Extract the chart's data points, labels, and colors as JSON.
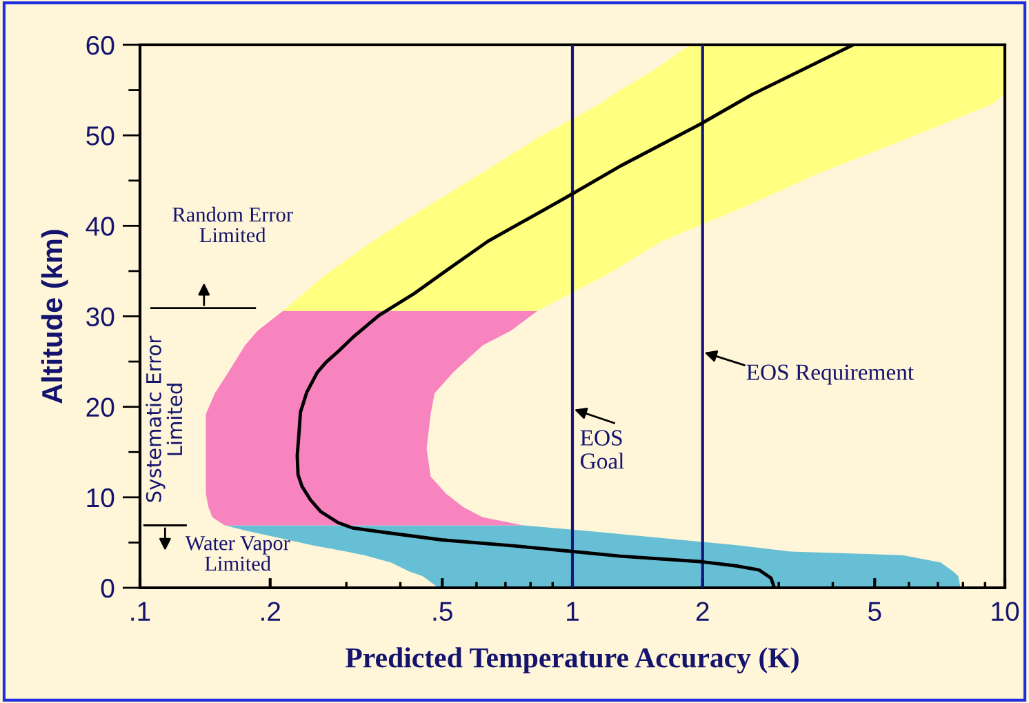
{
  "chart_data": {
    "type": "line",
    "xlabel": "Predicted Temperature Accuracy (K)",
    "ylabel": "Altitude (km)",
    "log": "x",
    "xlim": [
      0.1,
      10
    ],
    "ylim": [
      0,
      60
    ],
    "xticks": [
      {
        "value": 0.1,
        "label": ".1"
      },
      {
        "value": 0.2,
        "label": ".2"
      },
      {
        "value": 0.5,
        "label": ".5"
      },
      1,
      2,
      5,
      10
    ],
    "yticks": [
      0,
      10,
      20,
      30,
      40,
      50,
      60
    ],
    "grid": false,
    "legend": false,
    "marker": "none",
    "line_style": "solid",
    "series": [
      {
        "type": "area",
        "color": "#66bfd4",
        "x": [
          0.49,
          0.45,
          0.42,
          0.38,
          0.33,
          0.3,
          0.25,
          0.21,
          0.178,
          0.157,
          0.77,
          1.1,
          1.6,
          2.4,
          3.2,
          5.8,
          7.1,
          7.6,
          7.8,
          7.9
        ],
        "values": [
          0,
          1.3,
          1.8,
          2.8,
          3.6,
          4.0,
          4.7,
          5.5,
          6.25,
          6.9,
          6.9,
          6.25,
          5.5,
          4.7,
          4.0,
          3.6,
          2.8,
          1.8,
          1.3,
          0
        ]
      },
      {
        "type": "area",
        "color": "#f783bf",
        "x": [
          0.157,
          0.147,
          0.144,
          0.142,
          0.142,
          0.142,
          0.142,
          0.149,
          0.16,
          0.175,
          0.187,
          0.214,
          0.83,
          0.72,
          0.62,
          0.53,
          0.48,
          0.47,
          0.46,
          0.47,
          0.51,
          0.56,
          0.62,
          0.77
        ],
        "values": [
          6.9,
          7.8,
          8.9,
          10.4,
          12.3,
          15.4,
          19.2,
          21.5,
          23.8,
          26.8,
          28.4,
          30.6,
          30.6,
          28.4,
          26.8,
          23.8,
          21.5,
          19.2,
          15.4,
          12.3,
          10.4,
          8.9,
          7.8,
          6.9
        ]
      },
      {
        "type": "area",
        "color": "#ffff80",
        "x": [
          0.214,
          0.267,
          0.345,
          0.46,
          0.62,
          0.83,
          1.16,
          1.25,
          1.55,
          1.87,
          10,
          10,
          10,
          9.4,
          6.0,
          3.75,
          2.5,
          1.61,
          1.19,
          0.83
        ],
        "values": [
          30.6,
          34.5,
          38.3,
          42.1,
          45.9,
          49.7,
          53.5,
          54.6,
          57.3,
          60,
          60,
          57.3,
          54.6,
          53.5,
          49.7,
          45.9,
          42.1,
          38.3,
          34.5,
          30.6
        ]
      },
      {
        "color": "#000000",
        "x": [
          2.93,
          2.88,
          2.7,
          2.41,
          1.97,
          1.29,
          0.96,
          0.745,
          0.498,
          0.371,
          0.311,
          0.287,
          0.262,
          0.248,
          0.237,
          0.232,
          0.231,
          0.233,
          0.235,
          0.243,
          0.257,
          0.269,
          0.287,
          0.311,
          0.357,
          0.43,
          0.516,
          0.638,
          0.964,
          1.29,
          1.97,
          2.6,
          4.46
        ],
        "values": [
          0,
          1.07,
          1.98,
          2.4,
          2.9,
          3.5,
          4.1,
          4.6,
          5.3,
          6.1,
          6.6,
          7.2,
          8.4,
          9.7,
          11.2,
          12.5,
          14.6,
          16.9,
          19.4,
          21.6,
          23.8,
          24.9,
          26.1,
          27.7,
          30.1,
          32.5,
          35.2,
          38.3,
          43.1,
          46.6,
          51.2,
          54.5,
          60
        ]
      }
    ],
    "ref_lines": [
      {
        "axis": "x",
        "value": 1,
        "label": "EOS\nGoal",
        "color": "#14147a",
        "line_style": "solid"
      },
      {
        "axis": "x",
        "value": 2,
        "label": "EOS Requirement",
        "color": "#14147a",
        "line_style": "solid"
      }
    ],
    "annotations": [
      "Random Error\nLimited",
      "Systematic Error\nLimited",
      "Water Vapor\nLimited"
    ]
  }
}
